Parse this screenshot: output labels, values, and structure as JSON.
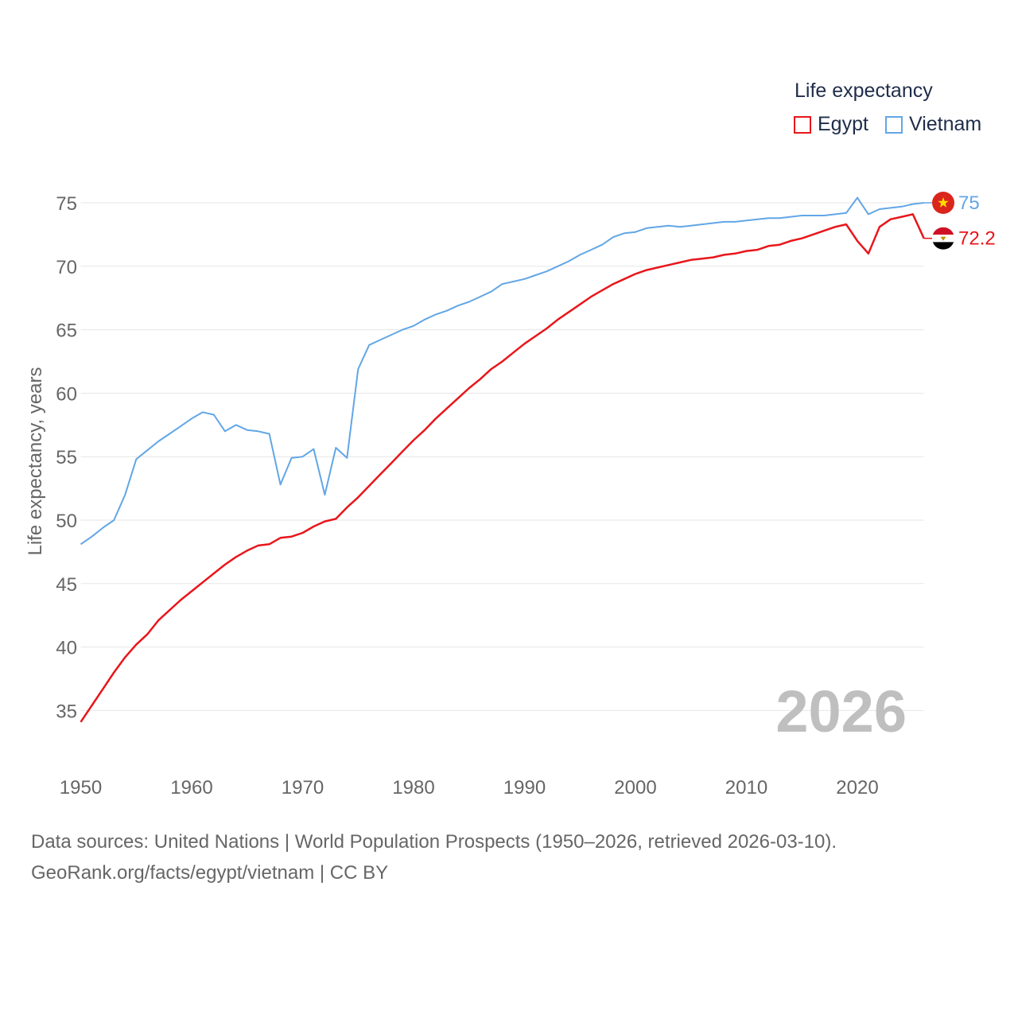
{
  "chart_data": {
    "type": "line",
    "title": "",
    "ylabel": "Life expectancy, years",
    "xlabel": "",
    "xlim": [
      1950,
      2026
    ],
    "ylim": [
      32,
      77
    ],
    "x_ticks": [
      1950,
      1960,
      1970,
      1980,
      1990,
      2000,
      2010,
      2020
    ],
    "y_ticks": [
      35,
      40,
      45,
      50,
      55,
      60,
      65,
      70,
      75
    ],
    "watermark_year": "2026",
    "legend": {
      "title": "Life expectancy",
      "placement": "top-right"
    },
    "series": [
      {
        "name": "Egypt",
        "color": "#e8161b",
        "end_label": "72.2",
        "flag": "egypt-flag",
        "x": [
          1950,
          1951,
          1952,
          1953,
          1954,
          1955,
          1956,
          1957,
          1958,
          1959,
          1960,
          1961,
          1962,
          1963,
          1964,
          1965,
          1966,
          1967,
          1968,
          1969,
          1970,
          1971,
          1972,
          1973,
          1974,
          1975,
          1976,
          1977,
          1978,
          1979,
          1980,
          1981,
          1982,
          1983,
          1984,
          1985,
          1986,
          1987,
          1988,
          1989,
          1990,
          1991,
          1992,
          1993,
          1994,
          1995,
          1996,
          1997,
          1998,
          1999,
          2000,
          2001,
          2002,
          2003,
          2004,
          2005,
          2006,
          2007,
          2008,
          2009,
          2010,
          2011,
          2012,
          2013,
          2014,
          2015,
          2016,
          2017,
          2018,
          2019,
          2020,
          2021,
          2022,
          2023,
          2024,
          2025,
          2026
        ],
        "values": [
          34.1,
          35.4,
          36.7,
          38.0,
          39.2,
          40.2,
          41.0,
          42.1,
          42.9,
          43.7,
          44.4,
          45.1,
          45.8,
          46.5,
          47.1,
          47.6,
          48.0,
          48.1,
          48.6,
          48.7,
          49.0,
          49.5,
          49.9,
          50.1,
          51.0,
          51.8,
          52.7,
          53.6,
          54.5,
          55.4,
          56.3,
          57.1,
          58.0,
          58.8,
          59.6,
          60.4,
          61.1,
          61.9,
          62.5,
          63.2,
          63.9,
          64.5,
          65.1,
          65.8,
          66.4,
          67.0,
          67.6,
          68.1,
          68.6,
          69.0,
          69.4,
          69.7,
          69.9,
          70.1,
          70.3,
          70.5,
          70.6,
          70.7,
          70.9,
          71.0,
          71.2,
          71.3,
          71.6,
          71.7,
          72.0,
          72.2,
          72.5,
          72.8,
          73.1,
          73.3,
          72.0,
          71.0,
          73.1,
          73.7,
          73.9,
          74.1,
          72.2
        ]
      },
      {
        "name": "Vietnam",
        "color": "#62a6e6",
        "end_label": "75",
        "flag": "vietnam-flag",
        "x": [
          1950,
          1951,
          1952,
          1953,
          1954,
          1955,
          1956,
          1957,
          1958,
          1959,
          1960,
          1961,
          1962,
          1963,
          1964,
          1965,
          1966,
          1967,
          1968,
          1969,
          1970,
          1971,
          1972,
          1973,
          1974,
          1975,
          1976,
          1977,
          1978,
          1979,
          1980,
          1981,
          1982,
          1983,
          1984,
          1985,
          1986,
          1987,
          1988,
          1989,
          1990,
          1991,
          1992,
          1993,
          1994,
          1995,
          1996,
          1997,
          1998,
          1999,
          2000,
          2001,
          2002,
          2003,
          2004,
          2005,
          2006,
          2007,
          2008,
          2009,
          2010,
          2011,
          2012,
          2013,
          2014,
          2015,
          2016,
          2017,
          2018,
          2019,
          2020,
          2021,
          2022,
          2023,
          2024,
          2025,
          2026
        ],
        "values": [
          48.1,
          48.7,
          49.4,
          50.0,
          52.0,
          54.8,
          55.5,
          56.2,
          56.8,
          57.4,
          58.0,
          58.5,
          58.3,
          57.0,
          57.5,
          57.1,
          57.0,
          56.8,
          52.8,
          54.9,
          55.0,
          55.6,
          52.0,
          55.7,
          54.9,
          61.9,
          63.8,
          64.2,
          64.6,
          65.0,
          65.3,
          65.8,
          66.2,
          66.5,
          66.9,
          67.2,
          67.6,
          68.0,
          68.6,
          68.8,
          69.0,
          69.3,
          69.6,
          70.0,
          70.4,
          70.9,
          71.3,
          71.7,
          72.3,
          72.6,
          72.7,
          73.0,
          73.1,
          73.2,
          73.1,
          73.2,
          73.3,
          73.4,
          73.5,
          73.5,
          73.6,
          73.7,
          73.8,
          73.8,
          73.9,
          74.0,
          74.0,
          74.0,
          74.1,
          74.2,
          75.4,
          74.1,
          74.5,
          74.6,
          74.7,
          74.9,
          75.0
        ]
      }
    ]
  },
  "footer": {
    "sources": "Data sources: United Nations | World Population Prospects (1950–2026, retrieved 2026-03-10).",
    "credit": "GeoRank.org/facts/egypt/vietnam | CC BY"
  }
}
